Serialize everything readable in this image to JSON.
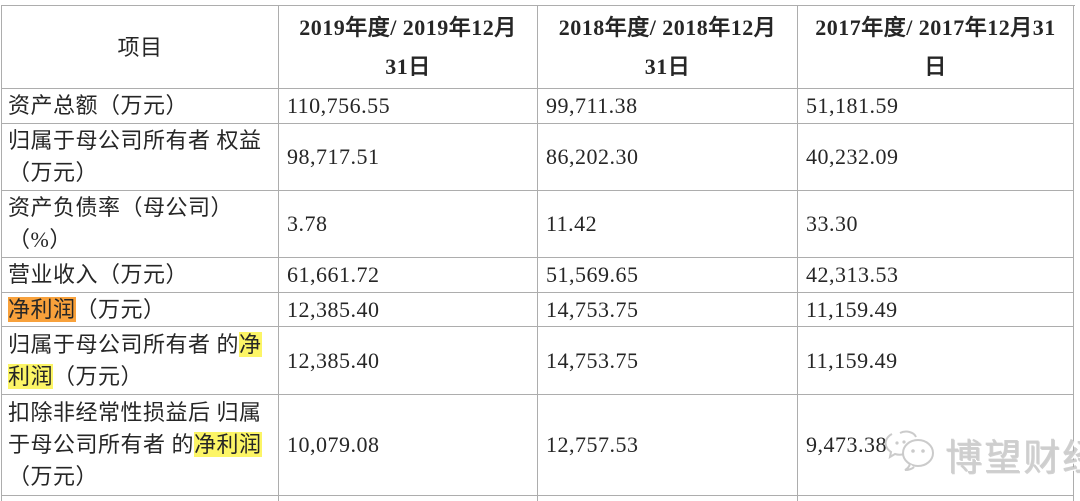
{
  "table": {
    "header": {
      "item_label": "项目",
      "period_columns": [
        {
          "lines": [
            "2019年度/ 2019年12月",
            "31日"
          ]
        },
        {
          "lines": [
            "2018年度/ 2018年12月",
            "31日"
          ]
        },
        {
          "lines": [
            "2017年度/ 2017年12月31",
            "日"
          ]
        }
      ]
    },
    "rows": [
      {
        "name": "total-assets",
        "label": [
          {
            "t": "资产总额（万元）"
          }
        ],
        "values": [
          "110,756.55",
          "99,711.38",
          "51,181.59"
        ]
      },
      {
        "name": "parent-equity",
        "label": [
          {
            "t": "归属于母公司所有者 权益（万元）"
          }
        ],
        "values": [
          "98,717.51",
          "86,202.30",
          "40,232.09"
        ]
      },
      {
        "name": "debt-ratio",
        "label": [
          {
            "t": "资产负债率（母公司）（%）"
          }
        ],
        "values": [
          "3.78",
          "11.42",
          "33.30"
        ]
      },
      {
        "name": "operating-revenue",
        "label": [
          {
            "t": "营业收入（万元）"
          }
        ],
        "values": [
          "61,661.72",
          "51,569.65",
          "42,313.53"
        ]
      },
      {
        "name": "net-profit",
        "label": [
          {
            "t": "净利润",
            "hl": "orange"
          },
          {
            "t": "（万元）"
          }
        ],
        "values": [
          "12,385.40",
          "14,753.75",
          "11,159.49"
        ]
      },
      {
        "name": "net-profit-to-parent",
        "label": [
          {
            "t": "归属于母公司所有者 的"
          },
          {
            "t": "净利润",
            "hl": "yellow"
          },
          {
            "t": "（万元）"
          }
        ],
        "values": [
          "12,385.40",
          "14,753.75",
          "11,159.49"
        ]
      },
      {
        "name": "net-profit-to-parent-excl-nonrecurring",
        "label": [
          {
            "t": "扣除非经常性损益后 归属于母公司所有者 的"
          },
          {
            "t": "净利润",
            "hl": "yellow"
          },
          {
            "t": "（万元）"
          }
        ],
        "values": [
          "10,079.08",
          "12,757.53",
          "9,473.38"
        ]
      }
    ]
  },
  "watermark": {
    "text": "博望财经",
    "icon": "wechat-chat-bubbles-icon"
  },
  "colors": {
    "highlight_orange": "#F8A13B",
    "highlight_yellow": "#FCF566",
    "border": "#ADADAD",
    "text": "#262626",
    "watermark_gray": "#C9C9C9"
  }
}
